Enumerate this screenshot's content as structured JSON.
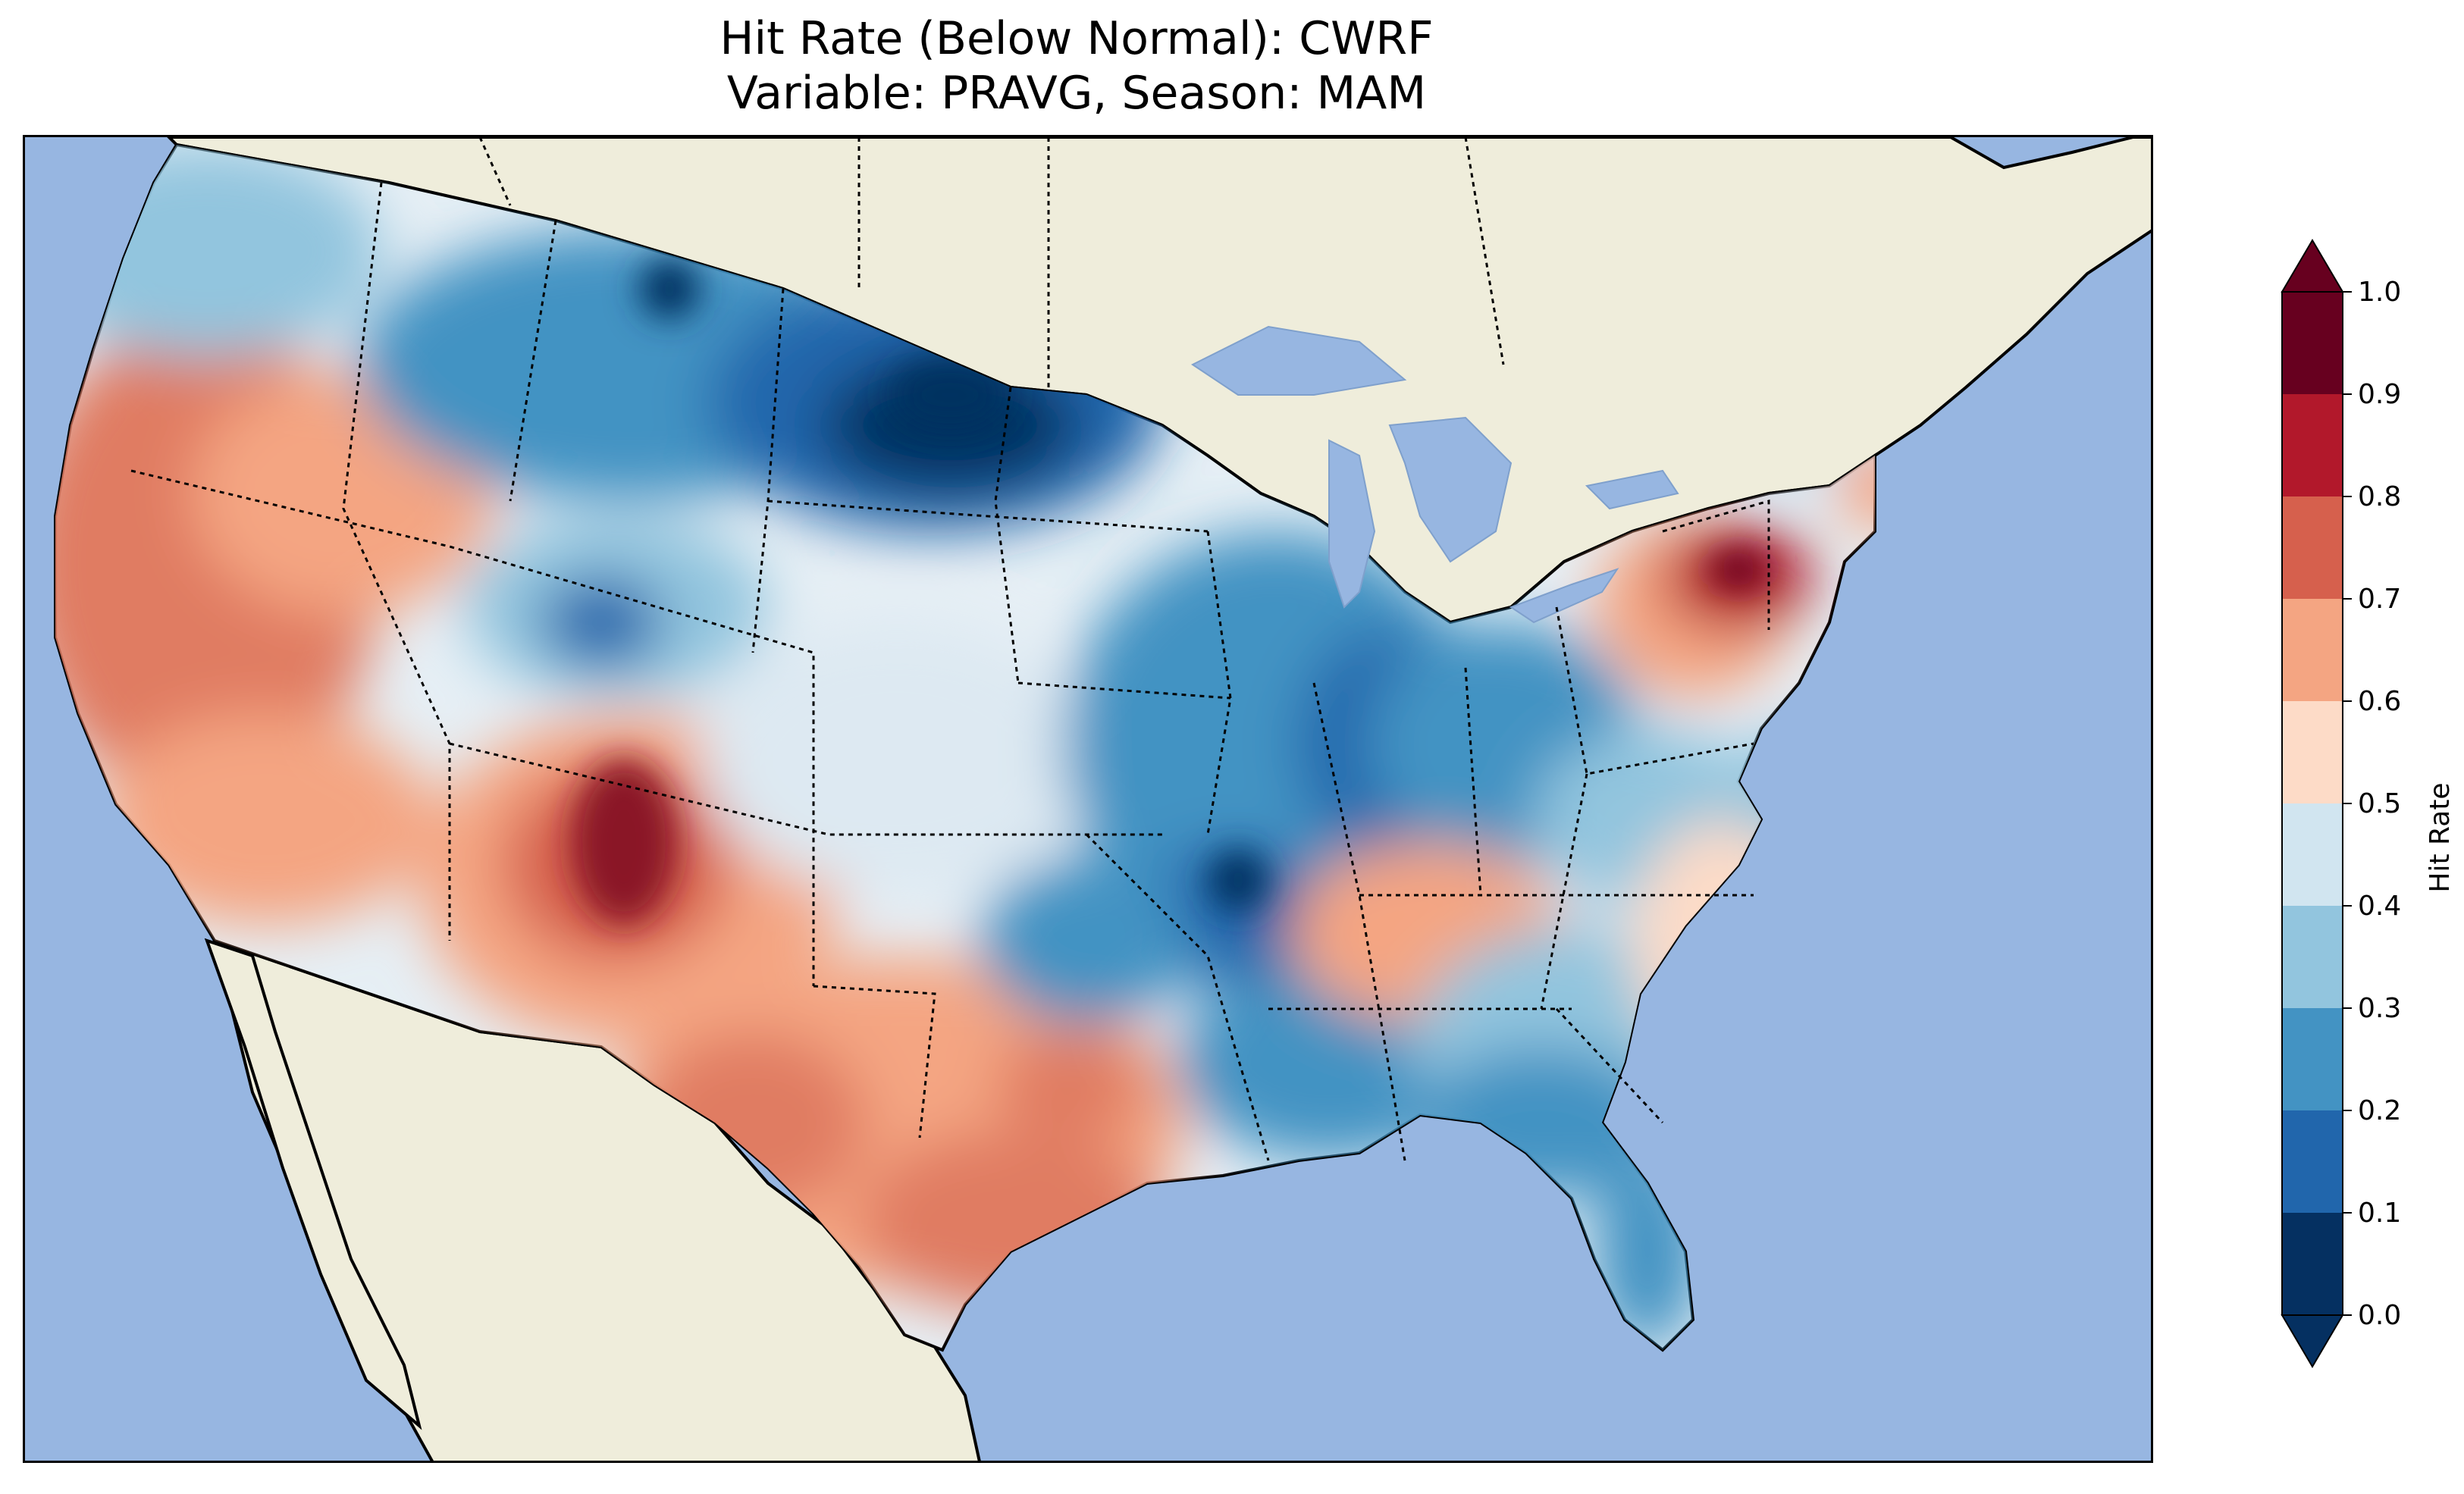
{
  "title": {
    "line1": "Hit Rate (Below Normal): CWRF",
    "line2": "Variable: PRAVG, Season: MAM"
  },
  "colorbar": {
    "label": "Hit Rate",
    "ticks": [
      "0.0",
      "0.1",
      "0.2",
      "0.3",
      "0.4",
      "0.5",
      "0.6",
      "0.7",
      "0.8",
      "0.9",
      "1.0"
    ],
    "colors": [
      "#053061",
      "#2166ac",
      "#4393c3",
      "#92c5de",
      "#d1e5f0",
      "#fddbc7",
      "#f4a582",
      "#d6604d",
      "#b2182b",
      "#67001f"
    ],
    "extend": "both"
  },
  "map": {
    "ocean_color": "#97b6e1",
    "land_color": "#efeddb",
    "region": "Continental United States",
    "areas": [
      {
        "name": "pacific-northwest",
        "value": 0.45
      },
      {
        "name": "california-nevada",
        "value": 0.72
      },
      {
        "name": "northern-rockies-plains",
        "value": 0.18
      },
      {
        "name": "montana-dakotas-core",
        "value": 0.05
      },
      {
        "name": "four-corners",
        "value": 0.88
      },
      {
        "name": "southern-plains-texas",
        "value": 0.62
      },
      {
        "name": "midwest",
        "value": 0.28
      },
      {
        "name": "pennsylvania",
        "value": 0.92
      },
      {
        "name": "southeast",
        "value": 0.35
      },
      {
        "name": "florida",
        "value": 0.22
      }
    ]
  }
}
